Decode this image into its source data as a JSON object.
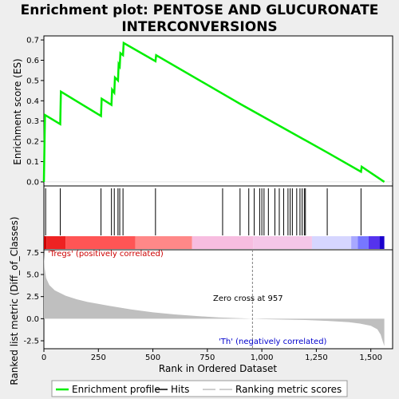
{
  "title_lines": [
    "Enrichment plot: PENTOSE AND GLUCURONATE",
    "INTERCONVERSIONS"
  ],
  "chart_data": [
    {
      "type": "line",
      "panel": "enrichment",
      "ylabel": "Enrichment score (ES)",
      "xlim": [
        0,
        1600
      ],
      "ylim": [
        -0.02,
        0.72
      ],
      "yticks": [
        0.0,
        0.1,
        0.2,
        0.3,
        0.4,
        0.5,
        0.6,
        0.7
      ],
      "ytick_labels": [
        "0.0",
        "0.1",
        "0.2",
        "0.3",
        "0.4",
        "0.5",
        "0.6",
        "0.7"
      ],
      "grid": false,
      "line_color": "#00ee00",
      "x": [
        0,
        5,
        75,
        78,
        262,
        265,
        310,
        313,
        323,
        326,
        340,
        343,
        348,
        351,
        363,
        366,
        512,
        515,
        820,
        900,
        1000,
        1300,
        1455,
        1458,
        1562
      ],
      "y": [
        0.0,
        0.33,
        0.285,
        0.445,
        0.325,
        0.41,
        0.38,
        0.455,
        0.44,
        0.515,
        0.5,
        0.58,
        0.57,
        0.635,
        0.625,
        0.685,
        0.595,
        0.625,
        0.435,
        0.385,
        0.325,
        0.145,
        0.05,
        0.075,
        0.0
      ]
    },
    {
      "type": "hits",
      "panel": "hits",
      "hit_positions": [
        8,
        75,
        262,
        310,
        323,
        340,
        348,
        363,
        512,
        820,
        900,
        940,
        965,
        990,
        1000,
        1010,
        1030,
        1060,
        1080,
        1100,
        1120,
        1130,
        1140,
        1160,
        1175,
        1185,
        1195,
        1200,
        1300,
        1455
      ]
    },
    {
      "type": "heatmap",
      "panel": "color-bar",
      "xlim": [
        0,
        1562
      ],
      "segments": [
        {
          "start": 0,
          "end": 12,
          "color": "#cc0000"
        },
        {
          "start": 12,
          "end": 100,
          "color": "#ee2222"
        },
        {
          "start": 100,
          "end": 420,
          "color": "#ff5555"
        },
        {
          "start": 420,
          "end": 680,
          "color": "#ff8888"
        },
        {
          "start": 680,
          "end": 960,
          "color": "#f7bde0"
        },
        {
          "start": 960,
          "end": 1230,
          "color": "#f5c6e8"
        },
        {
          "start": 1230,
          "end": 1410,
          "color": "#d6d6ff"
        },
        {
          "start": 1410,
          "end": 1440,
          "color": "#a8a8ff"
        },
        {
          "start": 1440,
          "end": 1490,
          "color": "#7777ff"
        },
        {
          "start": 1490,
          "end": 1540,
          "color": "#5533ee"
        },
        {
          "start": 1540,
          "end": 1562,
          "color": "#1a00cc"
        }
      ]
    },
    {
      "type": "area",
      "panel": "ranked-metric",
      "ylabel": "Ranked list metric (Diff_of_Classes)",
      "xlabel": "Rank in Ordered Dataset",
      "xlim": [
        0,
        1600
      ],
      "ylim": [
        -3.4,
        7.8
      ],
      "xticks": [
        0,
        250,
        500,
        750,
        1000,
        1250,
        1500
      ],
      "xtick_labels": [
        "0",
        "250",
        "500",
        "750",
        "1,000",
        "1,250",
        "1,500"
      ],
      "yticks": [
        -2.5,
        0.0,
        2.5,
        5.0,
        7.5
      ],
      "ytick_labels": [
        "-2.5",
        "0.0",
        "2.5",
        "5.0",
        "7.5"
      ],
      "fill_color": "#bfbfbf",
      "x": [
        0,
        3,
        10,
        25,
        50,
        100,
        150,
        200,
        300,
        400,
        500,
        600,
        700,
        800,
        900,
        957,
        1000,
        1100,
        1200,
        1300,
        1400,
        1450,
        1500,
        1530,
        1545,
        1555,
        1562
      ],
      "y": [
        7.6,
        5.8,
        4.6,
        3.8,
        3.2,
        2.6,
        2.2,
        1.9,
        1.45,
        1.05,
        0.72,
        0.48,
        0.3,
        0.15,
        0.05,
        0.0,
        -0.05,
        -0.1,
        -0.15,
        -0.25,
        -0.4,
        -0.55,
        -0.8,
        -1.2,
        -1.8,
        -2.6,
        -3.1
      ],
      "zero_cross": 957,
      "annotations": {
        "positive": "'Tregs' (positively correlated)",
        "zero": "Zero cross at 957",
        "negative": "'Th' (negatively correlated)"
      }
    }
  ],
  "legend": {
    "items": [
      {
        "label": "Enrichment profile",
        "kind": "line",
        "color": "#00ee00"
      },
      {
        "label": "Hits",
        "kind": "line",
        "color": "#000000"
      },
      {
        "label": "",
        "kind": "line",
        "color": "#bfbfbf"
      },
      {
        "label": "Ranking metric scores",
        "kind": "line",
        "color": "#bfbfbf"
      }
    ]
  },
  "colors": {
    "positive_text": "#cc0000",
    "negative_text": "#0000cc",
    "axis": "#000000",
    "zero_line": "#808080"
  }
}
